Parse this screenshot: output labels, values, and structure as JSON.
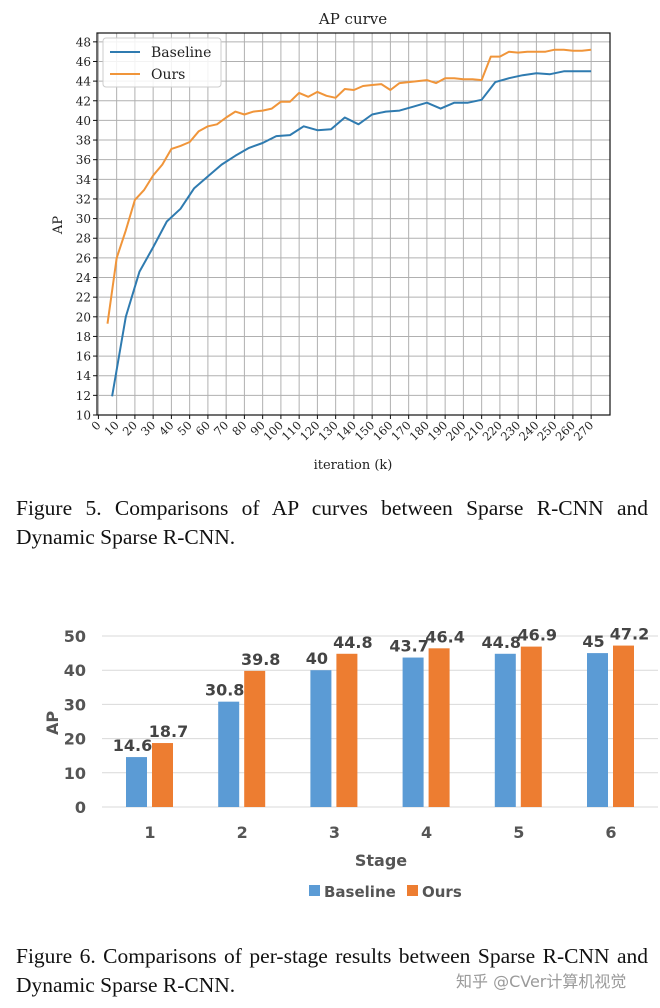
{
  "figure5": {
    "caption": "Figure 5. Comparisons of AP curves between Sparse R-CNN and Dynamic Sparse R-CNN."
  },
  "figure6": {
    "caption": "Figure 6.  Comparisons of per-stage results between Sparse R-CNN and Dynamic Sparse R-CNN."
  },
  "watermark": "知乎 @CVer计算机视觉",
  "chart_data": [
    {
      "type": "line",
      "title": "AP curve",
      "xlabel": "iteration (k)",
      "ylabel": "AP",
      "xlim": [
        0,
        280
      ],
      "ylim": [
        10,
        48.5
      ],
      "xticks": [
        0,
        10,
        20,
        30,
        40,
        50,
        60,
        70,
        80,
        90,
        100,
        110,
        120,
        130,
        140,
        150,
        160,
        170,
        180,
        190,
        200,
        210,
        220,
        230,
        240,
        250,
        260,
        270
      ],
      "yticks": [
        10,
        12,
        14,
        16,
        18,
        20,
        22,
        24,
        26,
        28,
        30,
        32,
        34,
        36,
        38,
        40,
        42,
        44,
        46,
        48
      ],
      "grid": true,
      "legend_position": "top-left",
      "series": [
        {
          "name": "Baseline",
          "color": "#2f7bb0",
          "x": [
            7.5,
            15,
            22.5,
            30,
            37.5,
            45,
            52.5,
            60,
            67.5,
            75,
            82.5,
            90,
            97.5,
            105,
            112.5,
            120,
            127.5,
            135,
            142.5,
            150,
            157.5,
            165,
            172.5,
            180,
            187.5,
            195,
            202.5,
            210,
            217.5,
            225,
            232.5,
            240,
            247.5,
            255,
            262.5,
            270
          ],
          "y": [
            11.9,
            20.0,
            24.6,
            27.1,
            29.7,
            31.0,
            33.1,
            34.3,
            35.5,
            36.4,
            37.2,
            37.7,
            38.4,
            38.5,
            39.4,
            39.0,
            39.1,
            40.3,
            39.6,
            40.6,
            40.9,
            41.0,
            41.4,
            41.8,
            41.2,
            41.8,
            41.8,
            42.1,
            43.9,
            44.3,
            44.6,
            44.8,
            44.7,
            45.0,
            45.0,
            45.0
          ]
        },
        {
          "name": "Ours",
          "color": "#f0953a",
          "x": [
            5,
            10,
            15,
            20,
            25,
            30,
            35,
            40,
            45,
            50,
            55,
            60,
            65,
            70,
            75,
            80,
            85,
            90,
            95,
            100,
            105,
            110,
            115,
            120,
            125,
            130,
            135,
            140,
            145,
            150,
            155,
            160,
            165,
            170,
            175,
            180,
            185,
            190,
            195,
            200,
            205,
            210,
            215,
            220,
            225,
            230,
            235,
            240,
            245,
            250,
            255,
            260,
            265,
            270
          ],
          "y": [
            19.3,
            26.0,
            28.8,
            31.9,
            32.9,
            34.4,
            35.5,
            37.1,
            37.4,
            37.8,
            38.9,
            39.4,
            39.6,
            40.3,
            40.9,
            40.6,
            40.9,
            41.0,
            41.2,
            41.9,
            41.9,
            42.8,
            42.4,
            42.9,
            42.5,
            42.3,
            43.2,
            43.1,
            43.5,
            43.6,
            43.7,
            43.1,
            43.8,
            43.9,
            44.0,
            44.1,
            43.8,
            44.3,
            44.3,
            44.2,
            44.2,
            44.1,
            46.5,
            46.5,
            47.0,
            46.9,
            47.0,
            47.0,
            47.0,
            47.2,
            47.2,
            47.1,
            47.1,
            47.2
          ]
        }
      ]
    },
    {
      "type": "bar",
      "xlabel": "Stage",
      "ylabel": "AP",
      "ylim": [
        0,
        50
      ],
      "yticks": [
        0,
        10,
        20,
        30,
        40,
        50
      ],
      "grid": true,
      "legend_position": "bottom",
      "categories": [
        "1",
        "2",
        "3",
        "4",
        "5",
        "6"
      ],
      "series": [
        {
          "name": "Baseline",
          "color": "#5b9bd5",
          "values": [
            14.6,
            30.8,
            40,
            43.7,
            44.8,
            45
          ],
          "labels": [
            "14.6",
            "30.8",
            "40",
            "43.7",
            "44.8",
            "45"
          ]
        },
        {
          "name": "Ours",
          "color": "#ed7d31",
          "values": [
            18.7,
            39.8,
            44.8,
            46.4,
            46.9,
            47.2
          ],
          "labels": [
            "18.7",
            "39.8",
            "44.8",
            "46.4",
            "46.9",
            "47.2"
          ]
        }
      ]
    }
  ]
}
